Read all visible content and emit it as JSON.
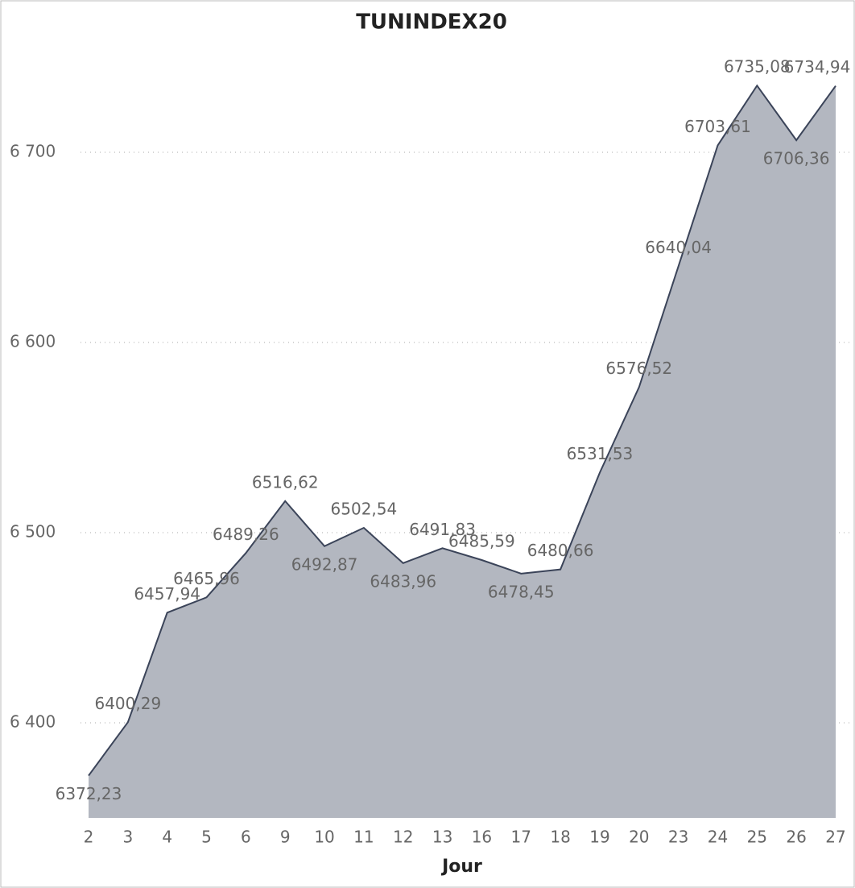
{
  "chart_data": {
    "type": "area",
    "title": "TUNINDEX20",
    "xlabel": "Jour",
    "categories": [
      "2",
      "3",
      "4",
      "5",
      "6",
      "9",
      "10",
      "11",
      "12",
      "13",
      "16",
      "17",
      "18",
      "19",
      "20",
      "23",
      "24",
      "25",
      "26",
      "27"
    ],
    "values": [
      6372.23,
      6400.29,
      6457.94,
      6465.96,
      6489.26,
      6516.62,
      6492.87,
      6502.54,
      6483.96,
      6491.83,
      6485.59,
      6478.45,
      6480.66,
      6531.53,
      6576.52,
      6640.04,
      6703.61,
      6735.08,
      6706.36,
      6734.94
    ],
    "value_labels": [
      "6372,23",
      "6400,29",
      "6457,94",
      "6465,96",
      "6489,26",
      "6516,62",
      "6492,87",
      "6502,54",
      "6483,96",
      "6491,83",
      "6485,59",
      "6478,45",
      "6480,66",
      "6531,53",
      "6576,52",
      "6640,04",
      "6703,61",
      "6735,08",
      "6706,36",
      "6734,94"
    ],
    "color": "#b3b7c0",
    "line_color": "#3b4459",
    "ylim": [
      6350,
      6750
    ],
    "yticks": [
      {
        "value": 6400,
        "label": "6 400"
      },
      {
        "value": 6500,
        "label": "6 500"
      },
      {
        "value": 6600,
        "label": "6 600"
      },
      {
        "value": 6700,
        "label": "6 700"
      }
    ],
    "grid": true
  }
}
